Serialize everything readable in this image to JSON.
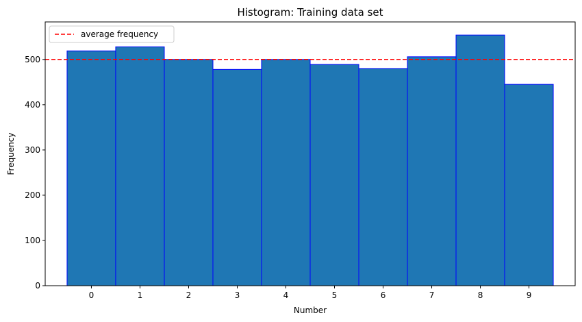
{
  "chart_data": {
    "type": "bar",
    "title": "Histogram: Training data set",
    "xlabel": "Number",
    "ylabel": "Frequency",
    "categories": [
      "0",
      "1",
      "2",
      "3",
      "4",
      "5",
      "6",
      "7",
      "8",
      "9"
    ],
    "values": [
      519,
      528,
      500,
      478,
      500,
      489,
      480,
      506,
      554,
      445
    ],
    "ylim": [
      0,
      583
    ],
    "yticks": [
      0,
      100,
      200,
      300,
      400,
      500
    ],
    "grid": false,
    "bar_fill": "#1f77b4",
    "bar_edge": "#0000ff",
    "reference_line": {
      "label": "average frequency",
      "value": 500,
      "color": "#ff0000",
      "style": "dashed"
    },
    "legend": {
      "position": "top-left",
      "entries": [
        "average frequency"
      ]
    }
  }
}
